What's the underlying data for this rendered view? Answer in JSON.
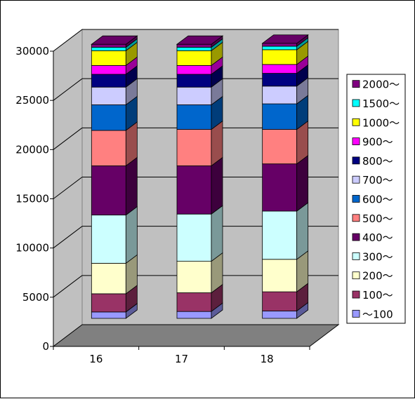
{
  "chart_data": {
    "type": "bar",
    "stacked": true,
    "three_d": true,
    "categories": [
      "16",
      "17",
      "18"
    ],
    "ylim": [
      0,
      30000
    ],
    "yticks": [
      0,
      5000,
      10000,
      15000,
      20000,
      25000,
      30000
    ],
    "grid": true,
    "legend_position": "right",
    "series": [
      {
        "name": "～100",
        "color": "#9999ff",
        "values": [
          650,
          700,
          750
        ]
      },
      {
        "name": "100～",
        "color": "#993366",
        "values": [
          1850,
          1900,
          1950
        ]
      },
      {
        "name": "200～",
        "color": "#ffffcc",
        "values": [
          3100,
          3200,
          3300
        ]
      },
      {
        "name": "300～",
        "color": "#ccffff",
        "values": [
          4900,
          4800,
          4900
        ]
      },
      {
        "name": "400～",
        "color": "#660066",
        "values": [
          5000,
          4900,
          4800
        ]
      },
      {
        "name": "500～",
        "color": "#ff8080",
        "values": [
          3600,
          3700,
          3500
        ]
      },
      {
        "name": "600～",
        "color": "#0066cc",
        "values": [
          2600,
          2500,
          2600
        ]
      },
      {
        "name": "700～",
        "color": "#ccccff",
        "values": [
          1800,
          1800,
          1800
        ]
      },
      {
        "name": "800～",
        "color": "#000080",
        "values": [
          1300,
          1300,
          1300
        ]
      },
      {
        "name": "900～",
        "color": "#ff00ff",
        "values": [
          900,
          900,
          900
        ]
      },
      {
        "name": "1000～",
        "color": "#ffff00",
        "values": [
          1500,
          1500,
          1500
        ]
      },
      {
        "name": "1500～",
        "color": "#00ffff",
        "values": [
          350,
          350,
          350
        ]
      },
      {
        "name": "2000～",
        "color": "#800080",
        "values": [
          300,
          300,
          300
        ]
      }
    ]
  }
}
